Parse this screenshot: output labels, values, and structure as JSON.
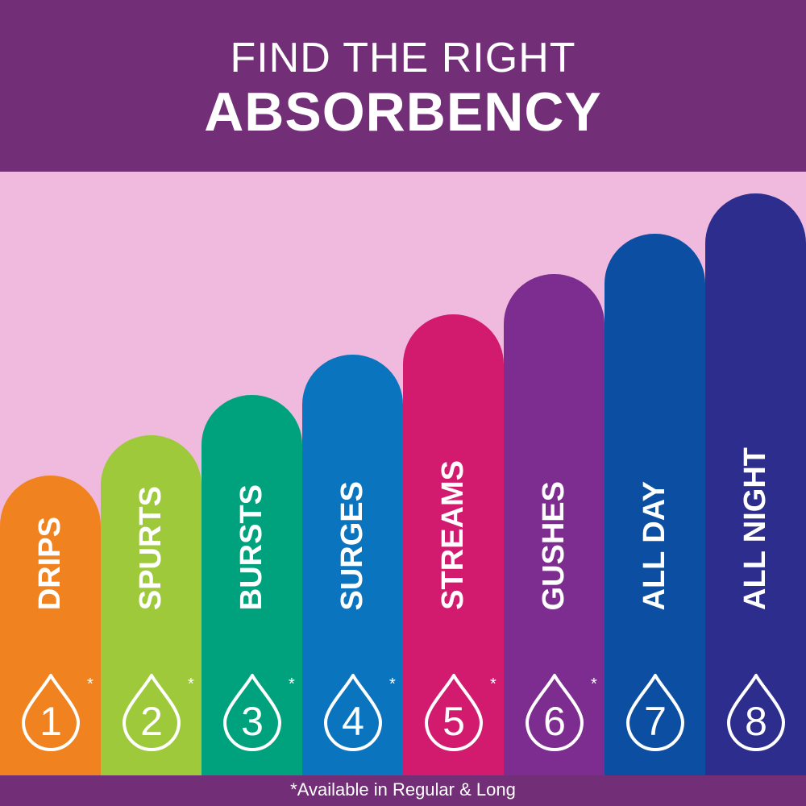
{
  "header": {
    "line1": "FIND THE RIGHT",
    "line2": "ABSORBENCY"
  },
  "levels": [
    {
      "label": "DRIPS",
      "number": "1",
      "asterisk": "*",
      "color": "#f0831f",
      "relative_height": 1
    },
    {
      "label": "SPURTS",
      "number": "2",
      "asterisk": "*",
      "color": "#9dc93b",
      "relative_height": 2
    },
    {
      "label": "BURSTS",
      "number": "3",
      "asterisk": "*",
      "color": "#00a27e",
      "relative_height": 3
    },
    {
      "label": "SURGES",
      "number": "4",
      "asterisk": "*",
      "color": "#0a74be",
      "relative_height": 4
    },
    {
      "label": "STREAMS",
      "number": "5",
      "asterisk": "*",
      "color": "#d21b6f",
      "relative_height": 5
    },
    {
      "label": "GUSHES",
      "number": "6",
      "asterisk": "*",
      "color": "#7d2c90",
      "relative_height": 6
    },
    {
      "label": "ALL DAY",
      "number": "7",
      "asterisk": "",
      "color": "#0b4ea2",
      "relative_height": 7
    },
    {
      "label": "ALL NIGHT",
      "number": "8",
      "asterisk": "",
      "color": "#2c2d8d",
      "relative_height": 8
    }
  ],
  "footer": {
    "note": "*Available in Regular & Long"
  },
  "colors": {
    "header_bg": "#722f77",
    "background": "#f0bade"
  }
}
